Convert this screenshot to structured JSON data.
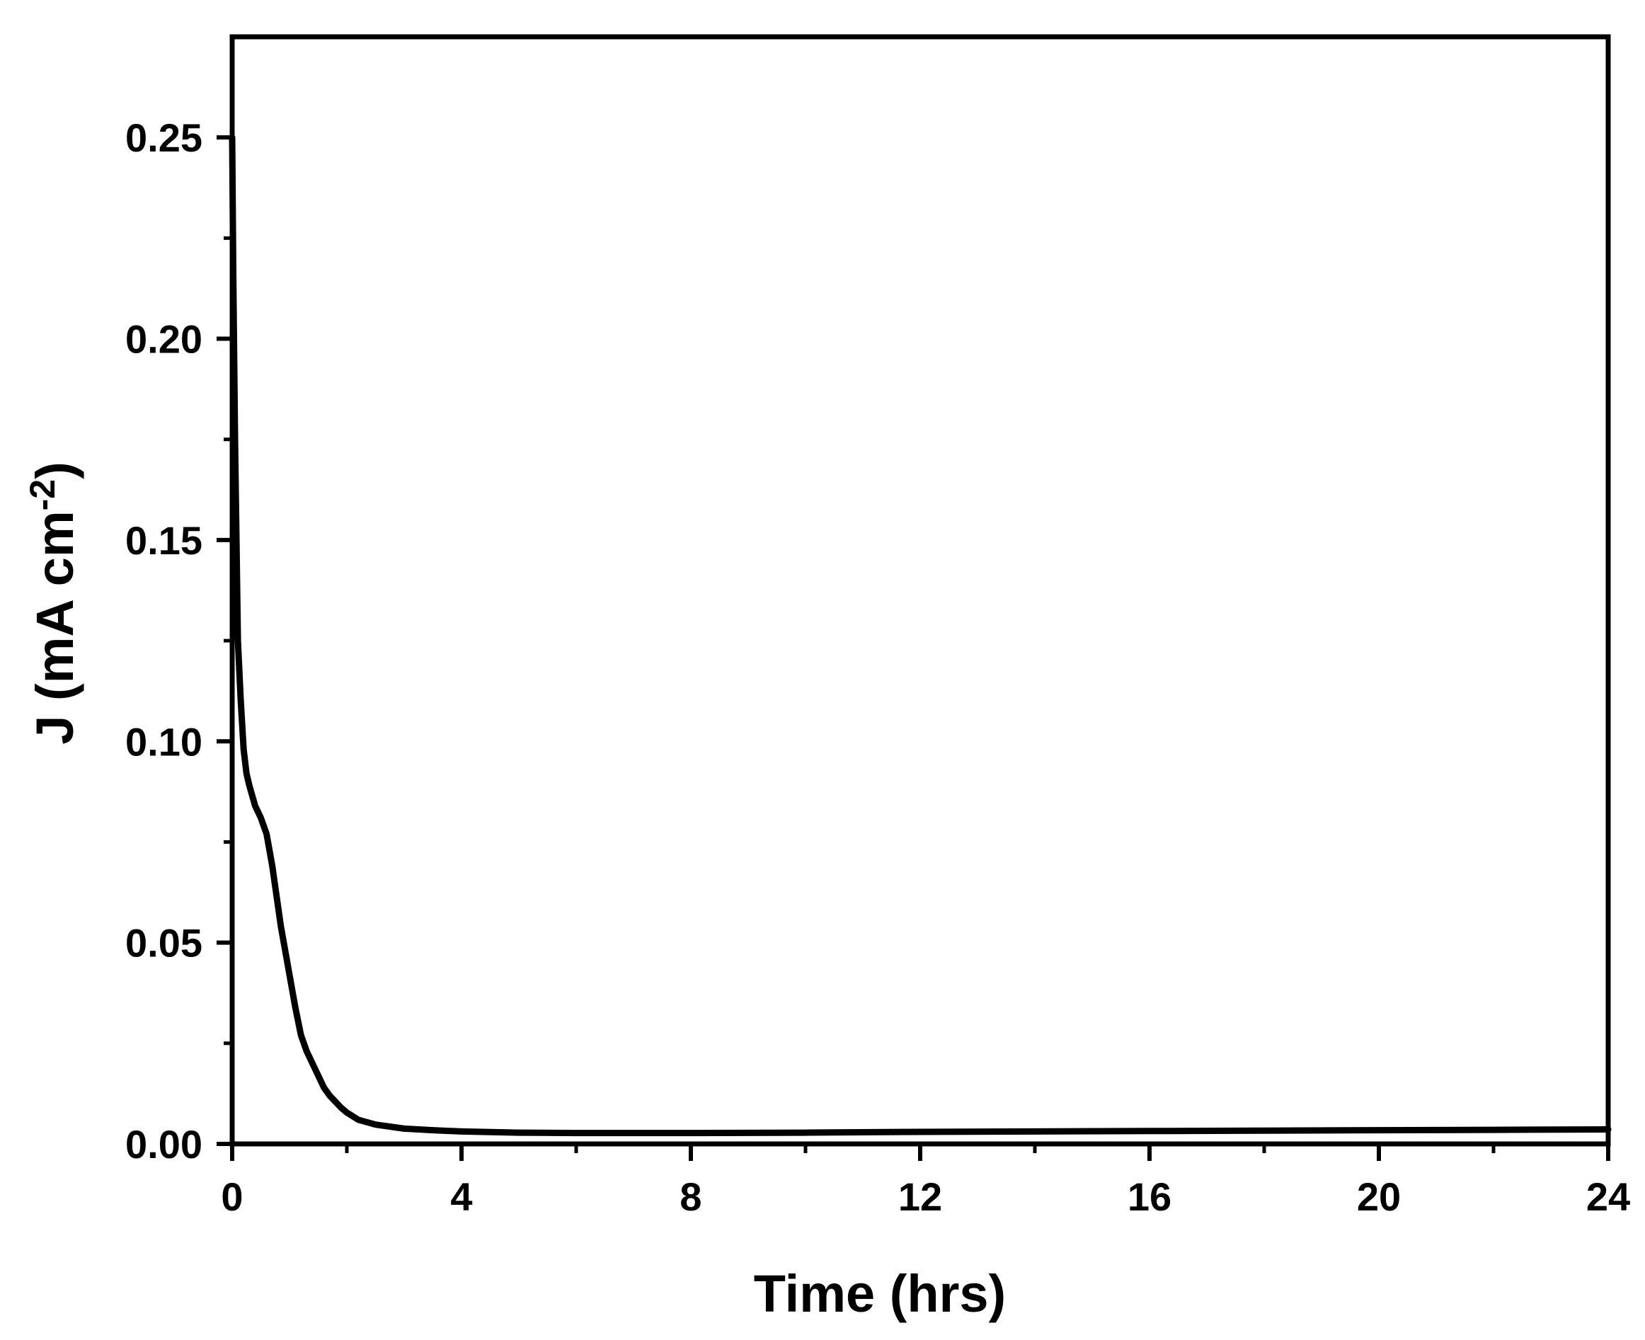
{
  "chart_data": {
    "type": "line",
    "title": "",
    "xlabel": "Time (hrs)",
    "ylabel": {
      "main": "J (mA cm",
      "superscript": "-2",
      "close": ")"
    },
    "xlim": [
      0,
      24
    ],
    "ylim": [
      0,
      0.275
    ],
    "x_ticks": [
      0,
      4,
      8,
      12,
      16,
      20,
      24
    ],
    "x_tick_labels": [
      "0",
      "4",
      "8",
      "12",
      "16",
      "20",
      "24"
    ],
    "x_minor_ticks": [
      2,
      6,
      10,
      14,
      18,
      22
    ],
    "y_ticks": [
      0,
      0.05,
      0.1,
      0.15,
      0.2,
      0.25
    ],
    "y_tick_labels": [
      "0.00",
      "0.05",
      "0.10",
      "0.15",
      "0.20",
      "0.25"
    ],
    "y_minor_ticks": [
      0.025,
      0.075,
      0.125,
      0.175,
      0.225
    ],
    "grid": false,
    "legend": "none",
    "series": [
      {
        "color": "#000000",
        "x": [
          0.0,
          0.02,
          0.05,
          0.08,
          0.1,
          0.15,
          0.2,
          0.25,
          0.3,
          0.4,
          0.5,
          0.55,
          0.6,
          0.65,
          0.7,
          0.75,
          0.8,
          0.85,
          0.9,
          1.0,
          1.1,
          1.2,
          1.3,
          1.4,
          1.5,
          1.6,
          1.7,
          1.8,
          1.9,
          2.0,
          2.2,
          2.5,
          2.8,
          3.0,
          3.5,
          4.0,
          5.0,
          6.0,
          8.0,
          10.0,
          12.0,
          14.0,
          16.0,
          18.0,
          20.0,
          22.0,
          24.0
        ],
        "y": [
          0.25,
          0.215,
          0.175,
          0.145,
          0.125,
          0.11,
          0.098,
          0.092,
          0.089,
          0.084,
          0.081,
          0.079,
          0.077,
          0.073,
          0.069,
          0.064,
          0.059,
          0.054,
          0.05,
          0.042,
          0.034,
          0.027,
          0.023,
          0.02,
          0.017,
          0.014,
          0.012,
          0.0105,
          0.009,
          0.0078,
          0.006,
          0.0048,
          0.0042,
          0.0038,
          0.0034,
          0.0031,
          0.0028,
          0.0027,
          0.0027,
          0.0028,
          0.003,
          0.0031,
          0.0032,
          0.0033,
          0.0034,
          0.0035,
          0.0036
        ]
      }
    ]
  }
}
